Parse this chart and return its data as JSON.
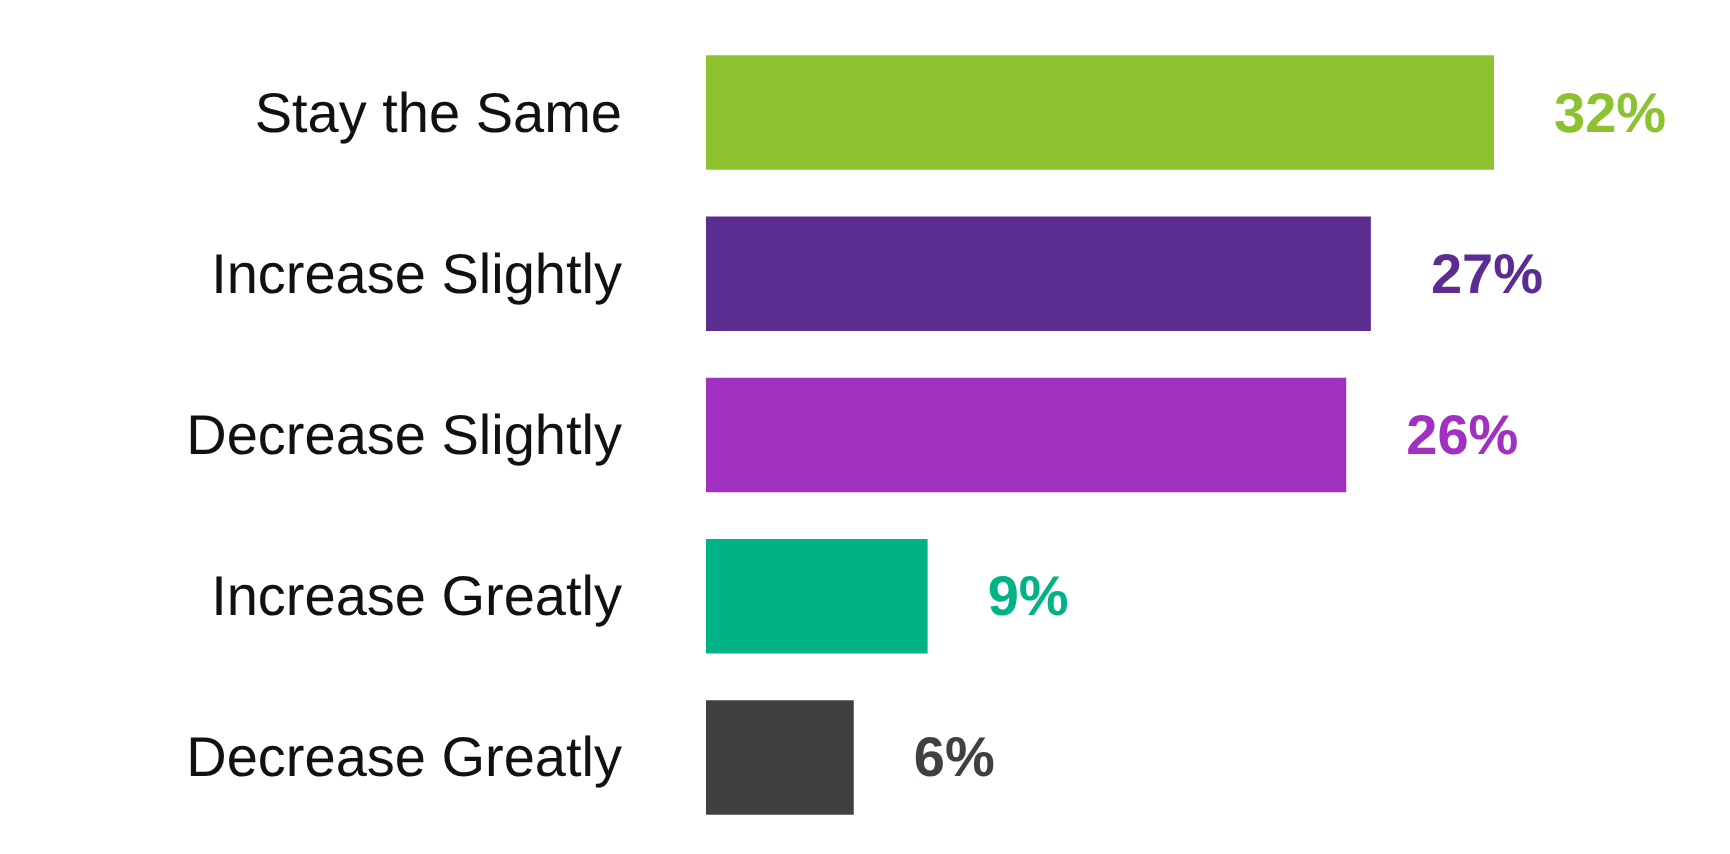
{
  "chart_data": {
    "type": "bar",
    "orientation": "horizontal",
    "categories": [
      "Stay the Same",
      "Increase Slightly",
      "Decrease Slightly",
      "Increase Greatly",
      "Decrease Greatly"
    ],
    "values": [
      32,
      27,
      26,
      9,
      6
    ],
    "colors": [
      "#8cc230",
      "#5c2d91",
      "#a030c0",
      "#00b386",
      "#3f4040"
    ],
    "value_labels": [
      "32%",
      "27%",
      "26%",
      "9%",
      "6%"
    ]
  }
}
